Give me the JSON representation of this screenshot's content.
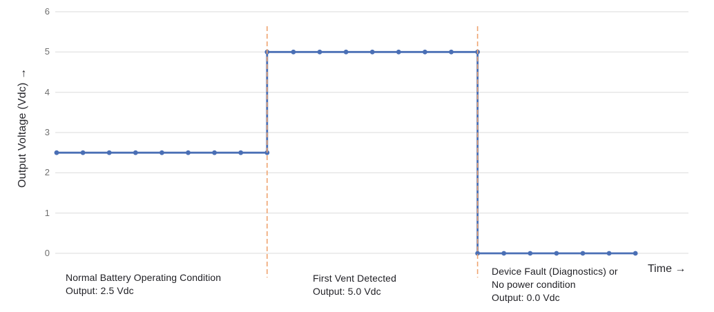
{
  "chart_data": {
    "type": "line",
    "title": "",
    "ylabel": "Output Voltage (Vdc) →",
    "xlabel": "Time →",
    "y_ticks": [
      0,
      1,
      2,
      3,
      4,
      5,
      6
    ],
    "ylim": [
      0,
      6
    ],
    "xlim": [
      0,
      22
    ],
    "grid": "horizontal",
    "legend": "none",
    "grid_color": "#DBDBDB",
    "tick_color": "#6E6E6E",
    "text_color": "#1E1E23",
    "series": [
      {
        "name": "Output Voltage (Vdc)",
        "color": "#4A6FB5",
        "marker": "circle",
        "points": [
          [
            0,
            2.5
          ],
          [
            1,
            2.5
          ],
          [
            2,
            2.5
          ],
          [
            3,
            2.5
          ],
          [
            4,
            2.5
          ],
          [
            5,
            2.5
          ],
          [
            6,
            2.5
          ],
          [
            7,
            2.5
          ],
          [
            8,
            2.5
          ],
          [
            8,
            5.0
          ],
          [
            9,
            5.0
          ],
          [
            10,
            5.0
          ],
          [
            11,
            5.0
          ],
          [
            12,
            5.0
          ],
          [
            13,
            5.0
          ],
          [
            14,
            5.0
          ],
          [
            15,
            5.0
          ],
          [
            16,
            5.0
          ],
          [
            16,
            0.0
          ],
          [
            17,
            0.0
          ],
          [
            18,
            0.0
          ],
          [
            19,
            0.0
          ],
          [
            20,
            0.0
          ],
          [
            21,
            0.0
          ],
          [
            22,
            0.0
          ]
        ]
      }
    ],
    "event_lines": [
      {
        "x": 8,
        "style": "dashed",
        "color": "#EFA470"
      },
      {
        "x": 16,
        "style": "dashed",
        "color": "#EFA470"
      }
    ],
    "annotations": [
      {
        "lines": [
          "Normal Battery Operating Condition",
          "Output: 2.5 Vdc"
        ]
      },
      {
        "lines": [
          "First Vent Detected",
          "Output: 5.0 Vdc"
        ]
      },
      {
        "lines": [
          "Device Fault (Diagnostics) or",
          "No power condition",
          "Output: 0.0 Vdc"
        ]
      }
    ]
  }
}
